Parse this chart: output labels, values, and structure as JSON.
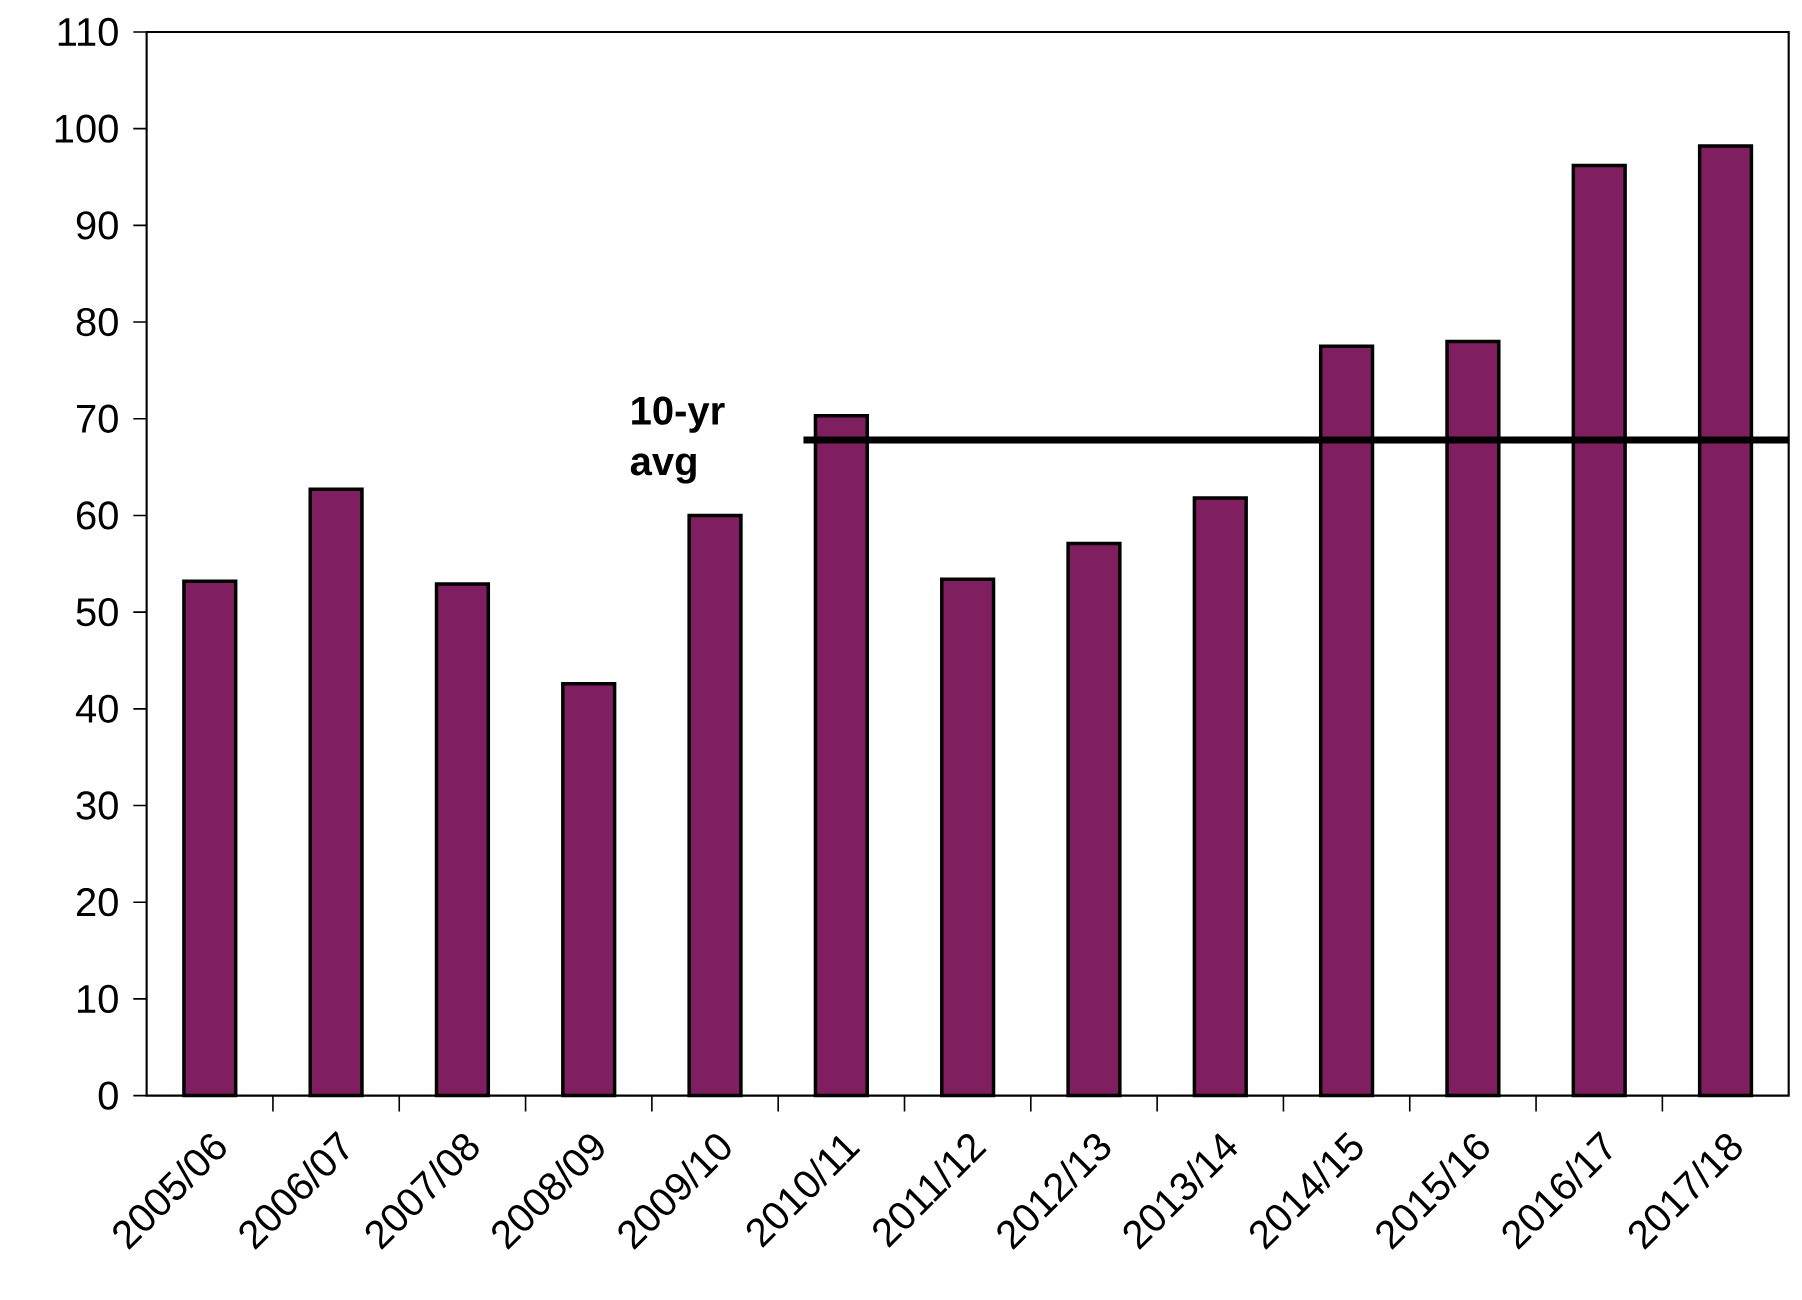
{
  "chart_data": {
    "type": "bar",
    "categories": [
      "2005/06",
      "2006/07",
      "2007/08",
      "2008/09",
      "2009/10",
      "2010/11",
      "2011/12",
      "2012/13",
      "2013/14",
      "2014/15",
      "2015/16",
      "2016/17",
      "2017/18"
    ],
    "values": [
      53.2,
      62.7,
      52.9,
      42.6,
      60.0,
      70.3,
      53.4,
      57.1,
      61.8,
      77.5,
      78.0,
      96.2,
      98.2
    ],
    "color": "#7f1f5f",
    "ylim": [
      0,
      110
    ],
    "yticks": [
      0,
      10,
      20,
      30,
      40,
      50,
      60,
      70,
      80,
      90,
      100,
      110
    ],
    "ref_lines": [
      {
        "axis": "y",
        "value": 67.8,
        "label": "10-yr avg",
        "color": "#000000"
      }
    ]
  }
}
